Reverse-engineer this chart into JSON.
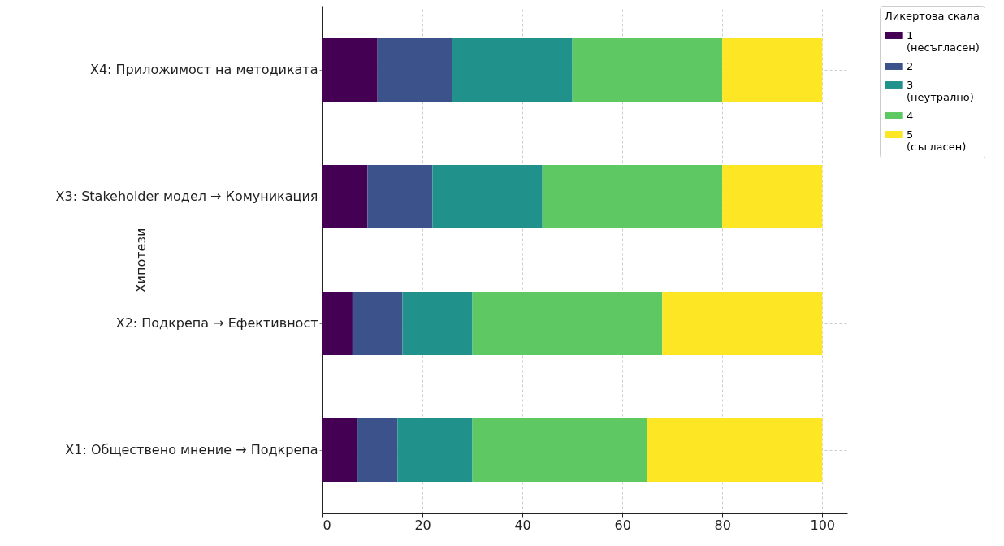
{
  "chart_data": {
    "type": "bar",
    "orientation": "horizontal",
    "stacked": true,
    "ylabel": "Хипотези",
    "legend_title": "Ликертова скала",
    "legend": "top right",
    "grid": true,
    "categories": [
      "X4: Приложимост на методиката",
      "X3: Stakeholder модел → Комуникация",
      "X2: Подкрепа → Ефективност",
      "X1: Обществено мнение → Подкрепа"
    ],
    "xlim": [
      0,
      105
    ],
    "xticks": [
      0,
      20,
      40,
      60,
      80,
      100
    ],
    "series": [
      {
        "name": "1 (несъгласен)",
        "color": "#440154",
        "values": [
          11,
          9,
          6,
          7
        ]
      },
      {
        "name": "2",
        "color": "#3b528b",
        "values": [
          15,
          13,
          10,
          8
        ]
      },
      {
        "name": "3 (неутрално)",
        "color": "#21918c",
        "values": [
          24,
          22,
          14,
          15
        ]
      },
      {
        "name": "4",
        "color": "#5ec962",
        "values": [
          30,
          36,
          38,
          35
        ]
      },
      {
        "name": "5 (съгласен)",
        "color": "#fde725",
        "values": [
          20,
          20,
          32,
          35
        ]
      }
    ]
  }
}
